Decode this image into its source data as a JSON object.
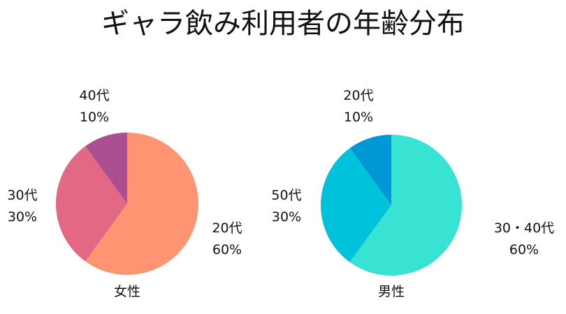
{
  "title": "ギャラ飲み利用者の年齢分布",
  "chart_data": [
    {
      "type": "pie",
      "title": "女性",
      "slices": [
        {
          "label": "20代",
          "percent_label": "60%",
          "value": 60,
          "color": "#FF9473"
        },
        {
          "label": "30代",
          "percent_label": "30%",
          "value": 30,
          "color": "#E26884"
        },
        {
          "label": "40代",
          "percent_label": "10%",
          "value": 10,
          "color": "#AB4E92"
        }
      ]
    },
    {
      "type": "pie",
      "title": "男性",
      "slices": [
        {
          "label": "30・40代",
          "percent_label": "60%",
          "value": 60,
          "color": "#38E3D4"
        },
        {
          "label": "50代",
          "percent_label": "30%",
          "value": 30,
          "color": "#00C3DB"
        },
        {
          "label": "20代",
          "percent_label": "10%",
          "value": 10,
          "color": "#0097D6"
        }
      ]
    }
  ]
}
